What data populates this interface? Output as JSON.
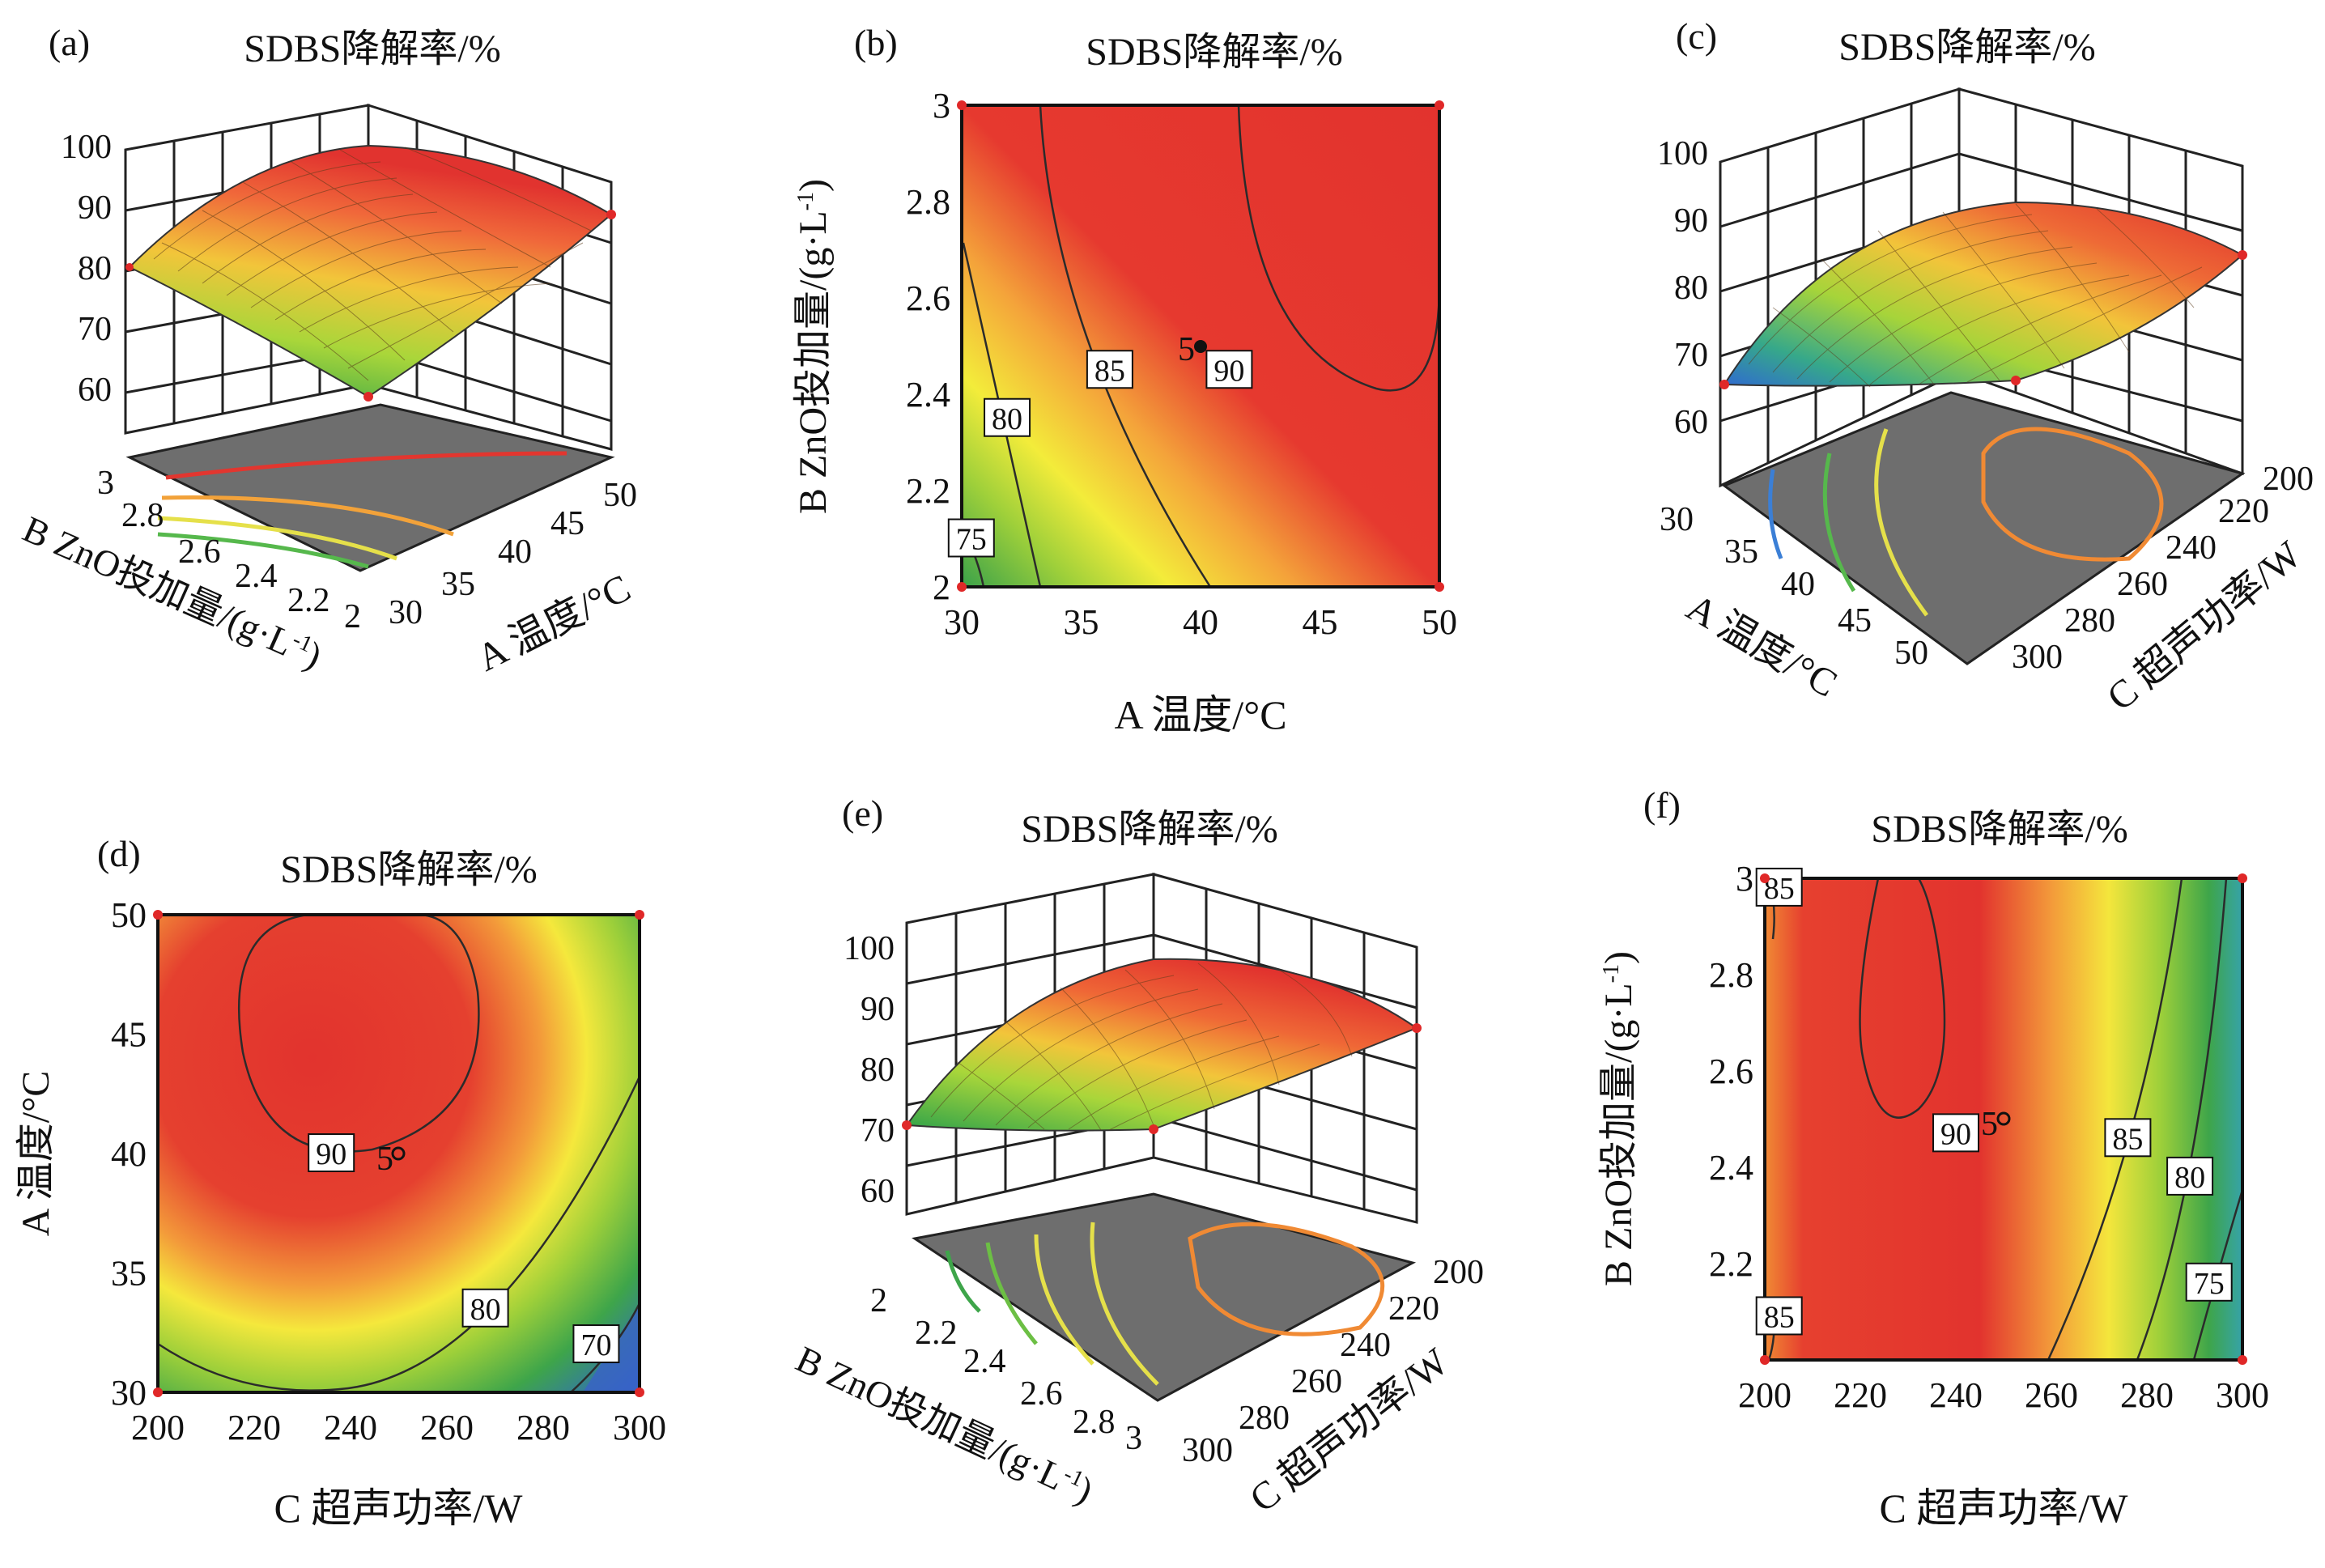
{
  "panels": {
    "a": {
      "letter": "(a)",
      "title": "SDBS降解率/%",
      "zticks": [
        "60",
        "70",
        "80",
        "90",
        "100"
      ],
      "bticks": [
        "3",
        "2.8",
        "2.6",
        "2.4",
        "2.2",
        "2"
      ],
      "aticks": [
        "30",
        "35",
        "40",
        "45",
        "50"
      ],
      "axis_b": "B ZnO投加量/(g·L",
      "axis_b_sup": "-1",
      "axis_a": "A 温度/°C"
    },
    "b": {
      "letter": "(b)",
      "title": "SDBS降解率/%",
      "xlabel": "A 温度/°C",
      "ylabel": "B ZnO投加量/(g·L",
      "ylabel_sup": "-1",
      "point_label": "5"
    },
    "c": {
      "letter": "(c)",
      "title": "SDBS降解率/%",
      "zticks": [
        "60",
        "70",
        "80",
        "90",
        "100"
      ],
      "aticks": [
        "30",
        "35",
        "40",
        "45",
        "50"
      ],
      "cticks": [
        "200",
        "220",
        "240",
        "260",
        "280",
        "300"
      ],
      "axis_a": "A 温度/°C",
      "axis_c": "C 超声功率/W"
    },
    "d": {
      "letter": "(d)",
      "title": "SDBS降解率/%",
      "xlabel": "C 超声功率/W",
      "ylabel": "A 温度/°C",
      "point_label": "5"
    },
    "e": {
      "letter": "(e)",
      "title": "SDBS降解率/%",
      "zticks": [
        "60",
        "70",
        "80",
        "90",
        "100"
      ],
      "bticks": [
        "2",
        "2.2",
        "2.4",
        "2.6",
        "2.8",
        "3"
      ],
      "cticks": [
        "200",
        "220",
        "240",
        "260",
        "280",
        "300"
      ],
      "axis_b": "B ZnO投加量/(g·L",
      "axis_b_sup": "-1",
      "axis_c": "C 超声功率/W"
    },
    "f": {
      "letter": "(f)",
      "title": "SDBS降解率/%",
      "xlabel": "C 超声功率/W",
      "ylabel": "B ZnO投加量/(g·L",
      "ylabel_sup": "-1",
      "point_label": "5"
    }
  },
  "chart_data": [
    {
      "panel": "a",
      "type": "surface3d",
      "title": "SDBS降解率/%",
      "x_axis": "A 温度/°C",
      "x_range": [
        30,
        50
      ],
      "y_axis": "B ZnO投加量/(g·L-1)",
      "y_range": [
        2,
        3
      ],
      "z_range": [
        60,
        100
      ],
      "corner_values": [
        {
          "A": 30,
          "B": 3,
          "z": 80
        },
        {
          "A": 50,
          "B": 3,
          "z": 88
        },
        {
          "A": 30,
          "B": 2,
          "z": 60
        },
        {
          "A": 50,
          "B": 2,
          "z": 88
        }
      ]
    },
    {
      "panel": "b",
      "type": "contour",
      "title": "SDBS降解率/%",
      "xlabel": "A 温度/°C",
      "xlim": [
        30,
        50
      ],
      "xticks": [
        30,
        35,
        40,
        45,
        50
      ],
      "ylabel": "B ZnO投加量/(g·L-1)",
      "ylim": [
        2,
        3
      ],
      "yticks": [
        2,
        2.2,
        2.4,
        2.6,
        2.8,
        3
      ],
      "contour_levels": [
        {
          "value": 75,
          "label_at": [
            30.4,
            2.1
          ]
        },
        {
          "value": 80,
          "label_at": [
            31.9,
            2.35
          ]
        },
        {
          "value": 85,
          "label_at": [
            36.2,
            2.45
          ]
        },
        {
          "value": 90,
          "label_at": [
            41.2,
            2.45
          ]
        }
      ],
      "design_point": {
        "label": "5",
        "A": 40,
        "B": 2.5
      }
    },
    {
      "panel": "c",
      "type": "surface3d",
      "title": "SDBS降解率/%",
      "x_axis": "A 温度/°C",
      "x_range": [
        30,
        50
      ],
      "y_axis": "C 超声功率/W",
      "y_range": [
        200,
        300
      ],
      "z_range": [
        60,
        100
      ]
    },
    {
      "panel": "d",
      "type": "contour",
      "title": "SDBS降解率/%",
      "xlabel": "C 超声功率/W",
      "xlim": [
        200,
        300
      ],
      "xticks": [
        200,
        220,
        240,
        260,
        280,
        300
      ],
      "ylabel": "A 温度/°C",
      "ylim": [
        30,
        50
      ],
      "yticks": [
        30,
        35,
        40,
        45,
        50
      ],
      "contour_levels": [
        {
          "value": 70,
          "label_at": [
            291,
            32
          ]
        },
        {
          "value": 80,
          "label_at": [
            268,
            33.5
          ]
        },
        {
          "value": 90,
          "label_at": [
            236,
            40
          ]
        }
      ],
      "design_point": {
        "label": "5",
        "C": 250,
        "A": 40
      }
    },
    {
      "panel": "e",
      "type": "surface3d",
      "title": "SDBS降解率/%",
      "x_axis": "B ZnO投加量/(g·L-1)",
      "x_range": [
        2,
        3
      ],
      "y_axis": "C 超声功率/W",
      "y_range": [
        200,
        300
      ],
      "z_range": [
        60,
        100
      ]
    },
    {
      "panel": "f",
      "type": "contour",
      "title": "SDBS降解率/%",
      "xlabel": "C 超声功率/W",
      "xlim": [
        200,
        300
      ],
      "xticks": [
        200,
        220,
        240,
        260,
        280,
        300
      ],
      "ylabel": "B ZnO投加量/(g·L-1)",
      "ylim": [
        2,
        3
      ],
      "yticks": [
        2.2,
        2.4,
        2.6,
        2.8,
        3
      ],
      "contour_levels": [
        {
          "value": 75,
          "label_at": [
            293,
            2.16
          ]
        },
        {
          "value": 80,
          "label_at": [
            289,
            2.38
          ]
        },
        {
          "value": 85,
          "label_at": [
            276,
            2.46
          ]
        },
        {
          "value": 85,
          "label_at": [
            203,
            2.98
          ]
        },
        {
          "value": 85,
          "label_at": [
            203,
            2.09
          ]
        },
        {
          "value": 90,
          "label_at": [
            240,
            2.47
          ]
        }
      ],
      "design_point": {
        "label": "5",
        "C": 250,
        "B": 2.5
      }
    }
  ]
}
